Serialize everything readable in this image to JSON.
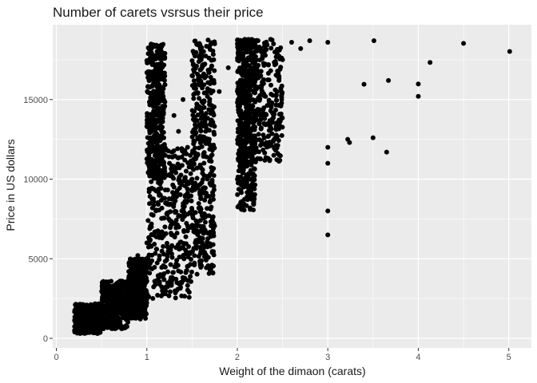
{
  "chart_data": {
    "type": "scatter",
    "title": "Number of carets vsrsus their price",
    "xlabel": "Weight of the dimaon (carats)",
    "ylabel": "Price in US dollars",
    "xlim": [
      -0.04,
      5.25
    ],
    "ylim": [
      -600,
      19700
    ],
    "x_ticks": [
      0,
      1,
      2,
      3,
      4,
      5
    ],
    "x_tick_labels": [
      "0",
      "1",
      "2",
      "3",
      "4",
      "5"
    ],
    "y_ticks": [
      0,
      5000,
      10000,
      15000
    ],
    "y_tick_labels": [
      "0",
      "5000",
      "10000",
      "15000"
    ],
    "grid": true,
    "legend": "none",
    "point_color": "#000000",
    "panel_color": "#ebebeb",
    "grid_color": "#ffffff",
    "points": [
      [
        0.23,
        330
      ],
      [
        0.25,
        400
      ],
      [
        0.3,
        450
      ],
      [
        0.3,
        600
      ],
      [
        0.32,
        700
      ],
      [
        0.35,
        900
      ],
      [
        0.4,
        1100
      ],
      [
        0.4,
        1300
      ],
      [
        0.45,
        1500
      ],
      [
        0.5,
        1800
      ],
      [
        0.5,
        2200
      ],
      [
        0.55,
        2000
      ],
      [
        0.6,
        2500
      ],
      [
        0.62,
        1600
      ],
      [
        0.7,
        2800
      ],
      [
        0.7,
        3500
      ],
      [
        0.72,
        2200
      ],
      [
        0.75,
        3200
      ],
      [
        0.8,
        3800
      ],
      [
        0.8,
        4200
      ],
      [
        0.85,
        4500
      ],
      [
        0.9,
        4000
      ],
      [
        0.9,
        5200
      ],
      [
        0.95,
        4800
      ],
      [
        1.0,
        5000
      ],
      [
        1.0,
        6000
      ],
      [
        1.0,
        3600
      ],
      [
        1.05,
        7000
      ],
      [
        1.1,
        8000
      ],
      [
        1.1,
        10500
      ],
      [
        1.15,
        9000
      ],
      [
        1.2,
        12000
      ],
      [
        1.2,
        7000
      ],
      [
        1.25,
        11000
      ],
      [
        1.3,
        14000
      ],
      [
        1.3,
        9500
      ],
      [
        1.35,
        13000
      ],
      [
        1.4,
        15000
      ],
      [
        1.45,
        12000
      ],
      [
        1.5,
        16500
      ],
      [
        1.5,
        10000
      ],
      [
        1.55,
        14500
      ],
      [
        1.6,
        17500
      ],
      [
        1.65,
        13000
      ],
      [
        1.7,
        16000
      ],
      [
        1.75,
        18500
      ],
      [
        1.8,
        15500
      ],
      [
        1.9,
        17000
      ],
      [
        2.0,
        18500
      ],
      [
        2.05,
        16000
      ],
      [
        2.1,
        17500
      ],
      [
        2.2,
        18700
      ],
      [
        2.3,
        18000
      ],
      [
        2.4,
        18500
      ],
      [
        2.5,
        17500
      ],
      [
        2.6,
        18600
      ],
      [
        2.7,
        18200
      ],
      [
        2.8,
        18700
      ],
      [
        3.0,
        18600
      ],
      [
        3.0,
        8000
      ],
      [
        3.0,
        6500
      ],
      [
        3.0,
        11000
      ],
      [
        3.0,
        12000
      ],
      [
        3.22,
        12500
      ],
      [
        3.24,
        12300
      ],
      [
        3.4,
        15960
      ],
      [
        3.5,
        12600
      ],
      [
        3.51,
        18700
      ],
      [
        3.65,
        11700
      ],
      [
        3.67,
        16200
      ],
      [
        4.0,
        15200
      ],
      [
        4.0,
        15980
      ],
      [
        4.13,
        17330
      ],
      [
        4.5,
        18530
      ],
      [
        5.01,
        18020
      ]
    ],
    "dense_regions": [
      {
        "x": [
          0.2,
          0.5
        ],
        "y": [
          300,
          2200
        ]
      },
      {
        "x": [
          0.5,
          0.8
        ],
        "y": [
          600,
          3600
        ]
      },
      {
        "x": [
          0.8,
          1.0
        ],
        "y": [
          1200,
          5000
        ]
      },
      {
        "x": [
          1.0,
          1.5
        ],
        "y": [
          2500,
          12000
        ]
      },
      {
        "x": [
          1.0,
          1.2
        ],
        "y": [
          10000,
          18500
        ]
      },
      {
        "x": [
          1.5,
          1.75
        ],
        "y": [
          4000,
          18800
        ]
      },
      {
        "x": [
          2.0,
          2.2
        ],
        "y": [
          8000,
          18800
        ]
      },
      {
        "x": [
          2.0,
          2.5
        ],
        "y": [
          11000,
          18800
        ]
      }
    ]
  }
}
